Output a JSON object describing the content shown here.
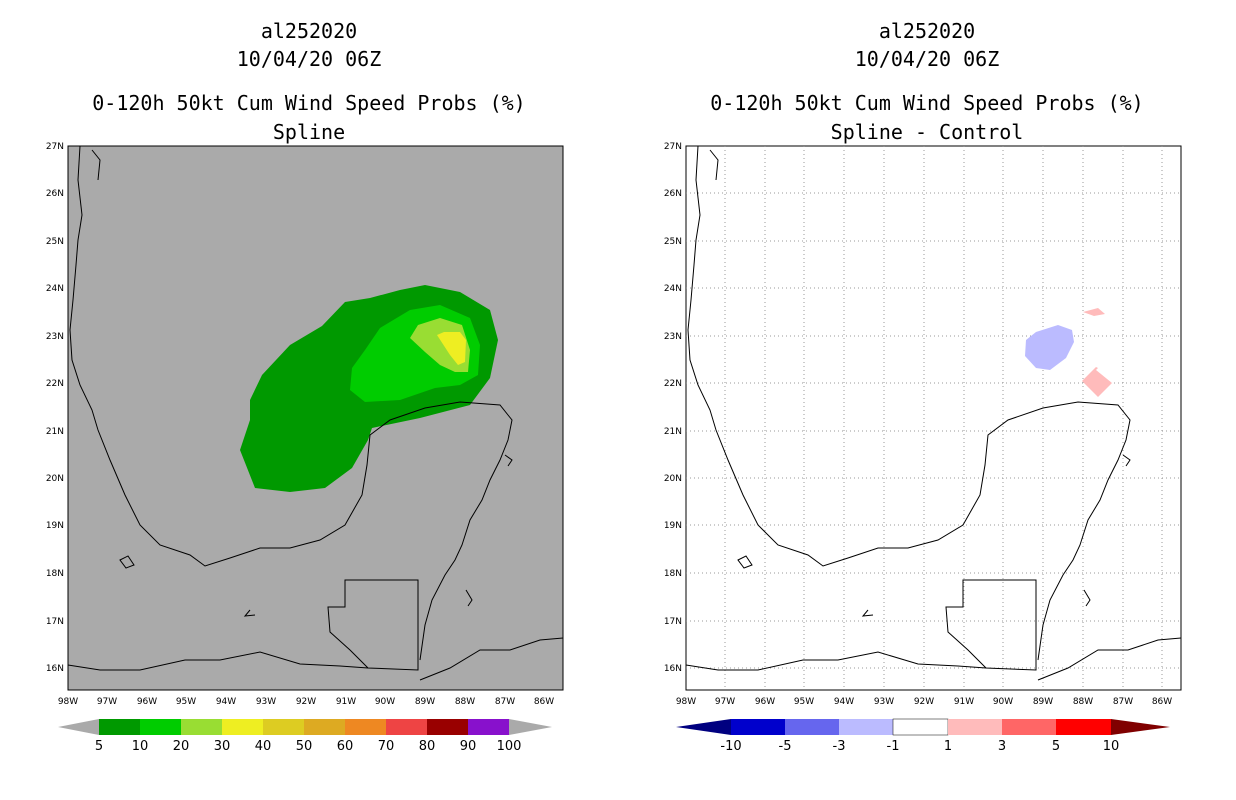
{
  "left": {
    "storm_id": "al252020",
    "datetime": "10/04/20 06Z",
    "product": "0-120h 50kt Cum Wind Speed Probs (%)",
    "subtitle": "Spline",
    "colorbar": {
      "labels": [
        "5",
        "10",
        "20",
        "30",
        "40",
        "50",
        "60",
        "70",
        "80",
        "90",
        "100"
      ],
      "colors": [
        "#009900",
        "#00cc00",
        "#99dd33",
        "#eeee22",
        "#ddcc22",
        "#ddaa22",
        "#ee8822",
        "#ee4444",
        "#990000",
        "#8811cc"
      ]
    }
  },
  "right": {
    "storm_id": "al252020",
    "datetime": "10/04/20 06Z",
    "product": "0-120h 50kt Cum Wind Speed Probs (%)",
    "subtitle": "Spline - Control",
    "colorbar": {
      "labels": [
        "-10",
        "-5",
        "-3",
        "-1",
        "1",
        "3",
        "5",
        "10"
      ],
      "colors": [
        "#0000cc",
        "#6666ee",
        "#bbbbff",
        "#ffffff",
        "#ffbbbb",
        "#ff6666",
        "#ff0000"
      ]
    }
  },
  "axes": {
    "lat_labels": [
      "27N",
      "26N",
      "25N",
      "24N",
      "23N",
      "22N",
      "21N",
      "20N",
      "19N",
      "18N",
      "17N",
      "16N"
    ],
    "lon_labels": [
      "98W",
      "97W",
      "96W",
      "95W",
      "94W",
      "93W",
      "92W",
      "91W",
      "90W",
      "89W",
      "88W",
      "87W",
      "86W"
    ]
  }
}
